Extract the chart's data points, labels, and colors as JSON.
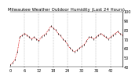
{
  "title": "Milwaukee Weather Outdoor Humidity (Last 24 Hours)",
  "bg_color": "#ffffff",
  "line_color": "#dd0000",
  "marker_color": "#000000",
  "grid_color": "#999999",
  "y_values": [
    42,
    44,
    48,
    56,
    72,
    74,
    76,
    74,
    72,
    70,
    72,
    70,
    68,
    72,
    74,
    76,
    80,
    84,
    82,
    80,
    76,
    74,
    70,
    68,
    64,
    60,
    58,
    56,
    58,
    60,
    62,
    64,
    68,
    72,
    72,
    70,
    72,
    74,
    76,
    74,
    72,
    70,
    72,
    74,
    76,
    78,
    76,
    74
  ],
  "ylim": [
    40,
    100
  ],
  "yticks": [
    40,
    50,
    60,
    70,
    80,
    90,
    100
  ],
  "tick_fontsize": 3.5,
  "title_fontsize": 4.0,
  "n_points": 48,
  "vgrid_positions": [
    6,
    12,
    18,
    24,
    30,
    36,
    42
  ]
}
